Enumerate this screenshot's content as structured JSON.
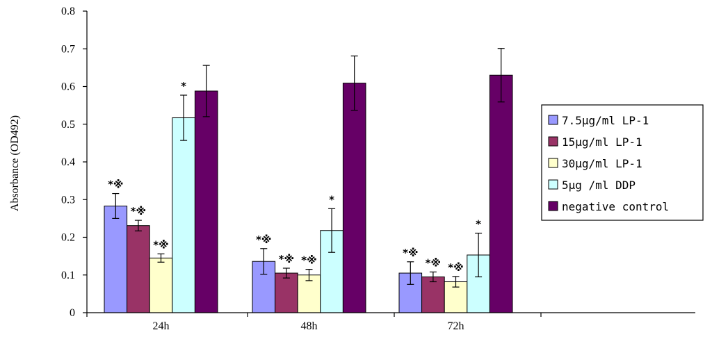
{
  "chart_data": {
    "type": "bar",
    "title": "",
    "xlabel": "",
    "ylabel": "Absorbance (OD492)",
    "ylim": [
      0,
      0.8
    ],
    "yticks": [
      "0",
      "0.1",
      "0.2",
      "0.3",
      "0.4",
      "0.5",
      "0.6",
      "0.7",
      "0.8"
    ],
    "categories": [
      "24h",
      "48h",
      "72h"
    ],
    "grid": false,
    "legend_position": "right",
    "series": [
      {
        "name": "7.5μg/ml LP-1",
        "color": "#9999ff",
        "values": [
          0.283,
          0.136,
          0.105
        ],
        "errors": [
          0.033,
          0.034,
          0.03
        ],
        "annotations": [
          "*※",
          "*※",
          "*※"
        ]
      },
      {
        "name": "15μg/ml LP-1",
        "color": "#993366",
        "values": [
          0.231,
          0.105,
          0.095
        ],
        "errors": [
          0.014,
          0.013,
          0.013
        ],
        "annotations": [
          "*※",
          "*※",
          "*※"
        ]
      },
      {
        "name": "30μg/ml LP-1",
        "color": "#ffffcc",
        "values": [
          0.145,
          0.1,
          0.082
        ],
        "errors": [
          0.011,
          0.015,
          0.014
        ],
        "annotations": [
          "*※",
          "*※",
          "*※"
        ]
      },
      {
        "name": "5μg /ml DDP",
        "color": "#ccffff",
        "values": [
          0.517,
          0.218,
          0.153
        ],
        "errors": [
          0.06,
          0.058,
          0.058
        ],
        "annotations": [
          "*",
          "*",
          "*"
        ]
      },
      {
        "name": "negative control",
        "color": "#660066",
        "values": [
          0.588,
          0.609,
          0.63
        ],
        "errors": [
          0.068,
          0.072,
          0.071
        ],
        "annotations": [
          "",
          "",
          ""
        ]
      }
    ]
  }
}
